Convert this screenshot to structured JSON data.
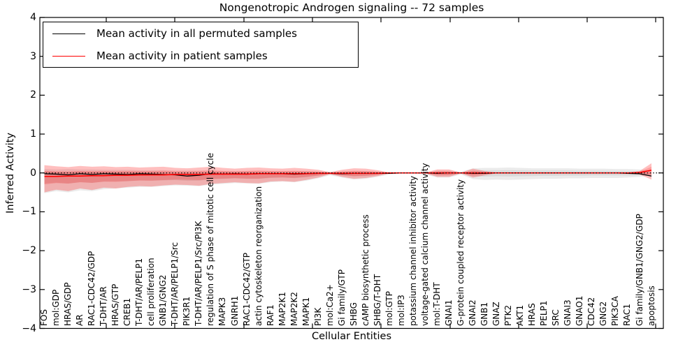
{
  "title": "Nongenotropic Androgen signaling -- 72 samples",
  "axes": {
    "ylabel": "Inferred Activity",
    "xlabel": "Cellular Entities",
    "ytick_values": [
      4,
      3,
      2,
      1,
      0,
      -1,
      -2,
      -3,
      -4
    ],
    "ytick_labels": [
      "4",
      "3",
      "2",
      "1",
      "0",
      "−1",
      "−2",
      "−3",
      "−4"
    ]
  },
  "legend": {
    "items": [
      {
        "label": "Mean activity in all permuted samples",
        "color": "#000000"
      },
      {
        "label": "Mean activity in patient samples",
        "color": "#ff0000"
      }
    ]
  },
  "chart_data": {
    "type": "line",
    "title": "Nongenotropic Androgen signaling -- 72 samples",
    "xlabel": "Cellular Entities",
    "ylabel": "Inferred Activity",
    "ylim": [
      -4,
      4
    ],
    "grid": false,
    "legend_position": "upper left",
    "zero_line": {
      "style": "dotted",
      "color": "#000000",
      "y": 0
    },
    "inner_band_factor": 0.5,
    "categories": [
      "FOS",
      "mol:GDP",
      "HRAS/GDP",
      "AR",
      "RAC1-CDC42/GDP",
      "T-DHT/AR",
      "HRAS/GTP",
      "CREB1",
      "T-DHT/AR/PELP1",
      "cell proliferation",
      "GNB1/GNG2",
      "T-DHT/AR/PELP1/Src",
      "PIK3R1",
      "T-DHT/AR/PELP1/Src/PI3K",
      "regulation of S phase of mitotic cell cycle",
      "MAPK3",
      "GNRH1",
      "RAC1-CDC42/GTP",
      "actin cytoskeleton reorganization",
      "RAF1",
      "MAP2K1",
      "MAP2K2",
      "MAPK1",
      "PI3K",
      "mol:Ca2+",
      "Gi family/GTP",
      "SHBG",
      "cAMP biosynthetic process",
      "SHBG/T-DHT",
      "mol:GTP",
      "mol:IP3",
      "potassium channel inhibitor activity",
      "voltage-gated calcium channel activity",
      "mol:T-DHT",
      "GNAI1",
      "G-protein coupled receptor activity",
      "GNAI2",
      "GNB1",
      "GNAZ",
      "PTK2",
      "AKT1",
      "HRAS",
      "PELP1",
      "SRC",
      "GNAI3",
      "GNAO1",
      "CDC42",
      "GNG2",
      "PIK3CA",
      "RAC1",
      "Gi family/GNB1/GNG2/GDP",
      "apoptosis"
    ],
    "series": [
      {
        "name": "Mean activity in all permuted samples",
        "color": "#000000",
        "width": 1.3,
        "values": [
          -0.02,
          -0.03,
          -0.05,
          -0.02,
          -0.04,
          -0.02,
          -0.03,
          -0.04,
          -0.02,
          -0.03,
          -0.04,
          -0.05,
          -0.08,
          -0.06,
          -0.02,
          -0.03,
          -0.02,
          -0.03,
          -0.02,
          -0.02,
          -0.02,
          -0.03,
          -0.02,
          -0.01,
          -0.01,
          -0.02,
          -0.01,
          -0.01,
          -0.01,
          -0.01,
          0,
          0,
          0,
          -0.01,
          0,
          0,
          -0.01,
          -0.01,
          0,
          0,
          0,
          0,
          0,
          0,
          0,
          0,
          0,
          0,
          0,
          -0.01,
          -0.02,
          -0.08
        ]
      },
      {
        "name": "Mean activity in patient samples",
        "color": "#ff0000",
        "width": 1.6,
        "values": [
          -0.09,
          -0.09,
          -0.08,
          -0.08,
          -0.07,
          -0.07,
          -0.06,
          -0.06,
          -0.05,
          -0.05,
          -0.05,
          -0.04,
          -0.04,
          -0.04,
          -0.03,
          -0.03,
          -0.03,
          -0.03,
          -0.02,
          -0.02,
          -0.02,
          -0.02,
          -0.02,
          -0.01,
          -0.01,
          -0.01,
          -0.01,
          -0.01,
          -0.01,
          0,
          0,
          0,
          0,
          0,
          0,
          0,
          0,
          0,
          0,
          0,
          0,
          0,
          0,
          0,
          0,
          0,
          0,
          0,
          0,
          0,
          0.01,
          0.07
        ]
      }
    ],
    "bands": [
      {
        "name": "permuted-envelope",
        "series": 0,
        "color": "#000000",
        "opacity": 0.08,
        "inner_opacity": 0.07,
        "upper": [
          0.1,
          0.09,
          0.1,
          0.09,
          0.09,
          0.08,
          0.08,
          0.08,
          0.07,
          0.07,
          0.07,
          0.06,
          0.06,
          0.06,
          0.06,
          0.05,
          0.05,
          0.05,
          0.05,
          0.05,
          0.05,
          0.05,
          0.05,
          0.04,
          0.03,
          0.04,
          0.05,
          0.05,
          0.04,
          0.02,
          0.01,
          0.01,
          0.02,
          0.06,
          0.06,
          0.03,
          0.12,
          0.13,
          0.13,
          0.14,
          0.13,
          0.12,
          0.12,
          0.12,
          0.12,
          0.11,
          0.11,
          0.11,
          0.1,
          0.1,
          0.09,
          0.05
        ],
        "lower": [
          -0.52,
          -0.47,
          -0.5,
          -0.45,
          -0.47,
          -0.42,
          -0.4,
          -0.38,
          -0.36,
          -0.36,
          -0.34,
          -0.32,
          -0.33,
          -0.34,
          -0.3,
          -0.28,
          -0.26,
          -0.27,
          -0.28,
          -0.24,
          -0.22,
          -0.24,
          -0.2,
          -0.14,
          -0.06,
          -0.12,
          -0.17,
          -0.15,
          -0.1,
          -0.04,
          -0.02,
          -0.02,
          -0.04,
          -0.12,
          -0.12,
          -0.04,
          -0.16,
          -0.18,
          -0.17,
          -0.18,
          -0.17,
          -0.16,
          -0.15,
          -0.15,
          -0.14,
          -0.14,
          -0.13,
          -0.13,
          -0.13,
          -0.12,
          -0.1,
          -0.06
        ]
      },
      {
        "name": "patient-envelope",
        "series": 1,
        "color": "#ff0000",
        "opacity": 0.25,
        "inner_opacity": 0.18,
        "upper": [
          0.2,
          0.17,
          0.15,
          0.18,
          0.16,
          0.17,
          0.15,
          0.16,
          0.14,
          0.15,
          0.16,
          0.13,
          0.12,
          0.14,
          0.16,
          0.13,
          0.11,
          0.13,
          0.14,
          0.12,
          0.11,
          0.13,
          0.11,
          0.08,
          0.02,
          0.08,
          0.12,
          0.11,
          0.07,
          0.01,
          0.005,
          0.005,
          0.01,
          0.09,
          0.09,
          0.01,
          0.11,
          0.05,
          0.01,
          0.005,
          0.005,
          0.005,
          0.005,
          0.005,
          0.005,
          0.005,
          0.005,
          0.005,
          0.005,
          0.005,
          0.05,
          0.25
        ],
        "lower": [
          -0.5,
          -0.43,
          -0.47,
          -0.4,
          -0.44,
          -0.38,
          -0.4,
          -0.36,
          -0.34,
          -0.35,
          -0.32,
          -0.3,
          -0.31,
          -0.33,
          -0.28,
          -0.26,
          -0.24,
          -0.26,
          -0.27,
          -0.22,
          -0.21,
          -0.23,
          -0.18,
          -0.12,
          -0.03,
          -0.1,
          -0.15,
          -0.13,
          -0.08,
          -0.01,
          -0.005,
          -0.005,
          -0.01,
          -0.1,
          -0.1,
          -0.01,
          -0.12,
          -0.06,
          -0.01,
          -0.005,
          -0.005,
          -0.005,
          -0.005,
          -0.005,
          -0.005,
          -0.005,
          -0.005,
          -0.005,
          -0.005,
          -0.005,
          -0.04,
          -0.17
        ]
      }
    ]
  }
}
